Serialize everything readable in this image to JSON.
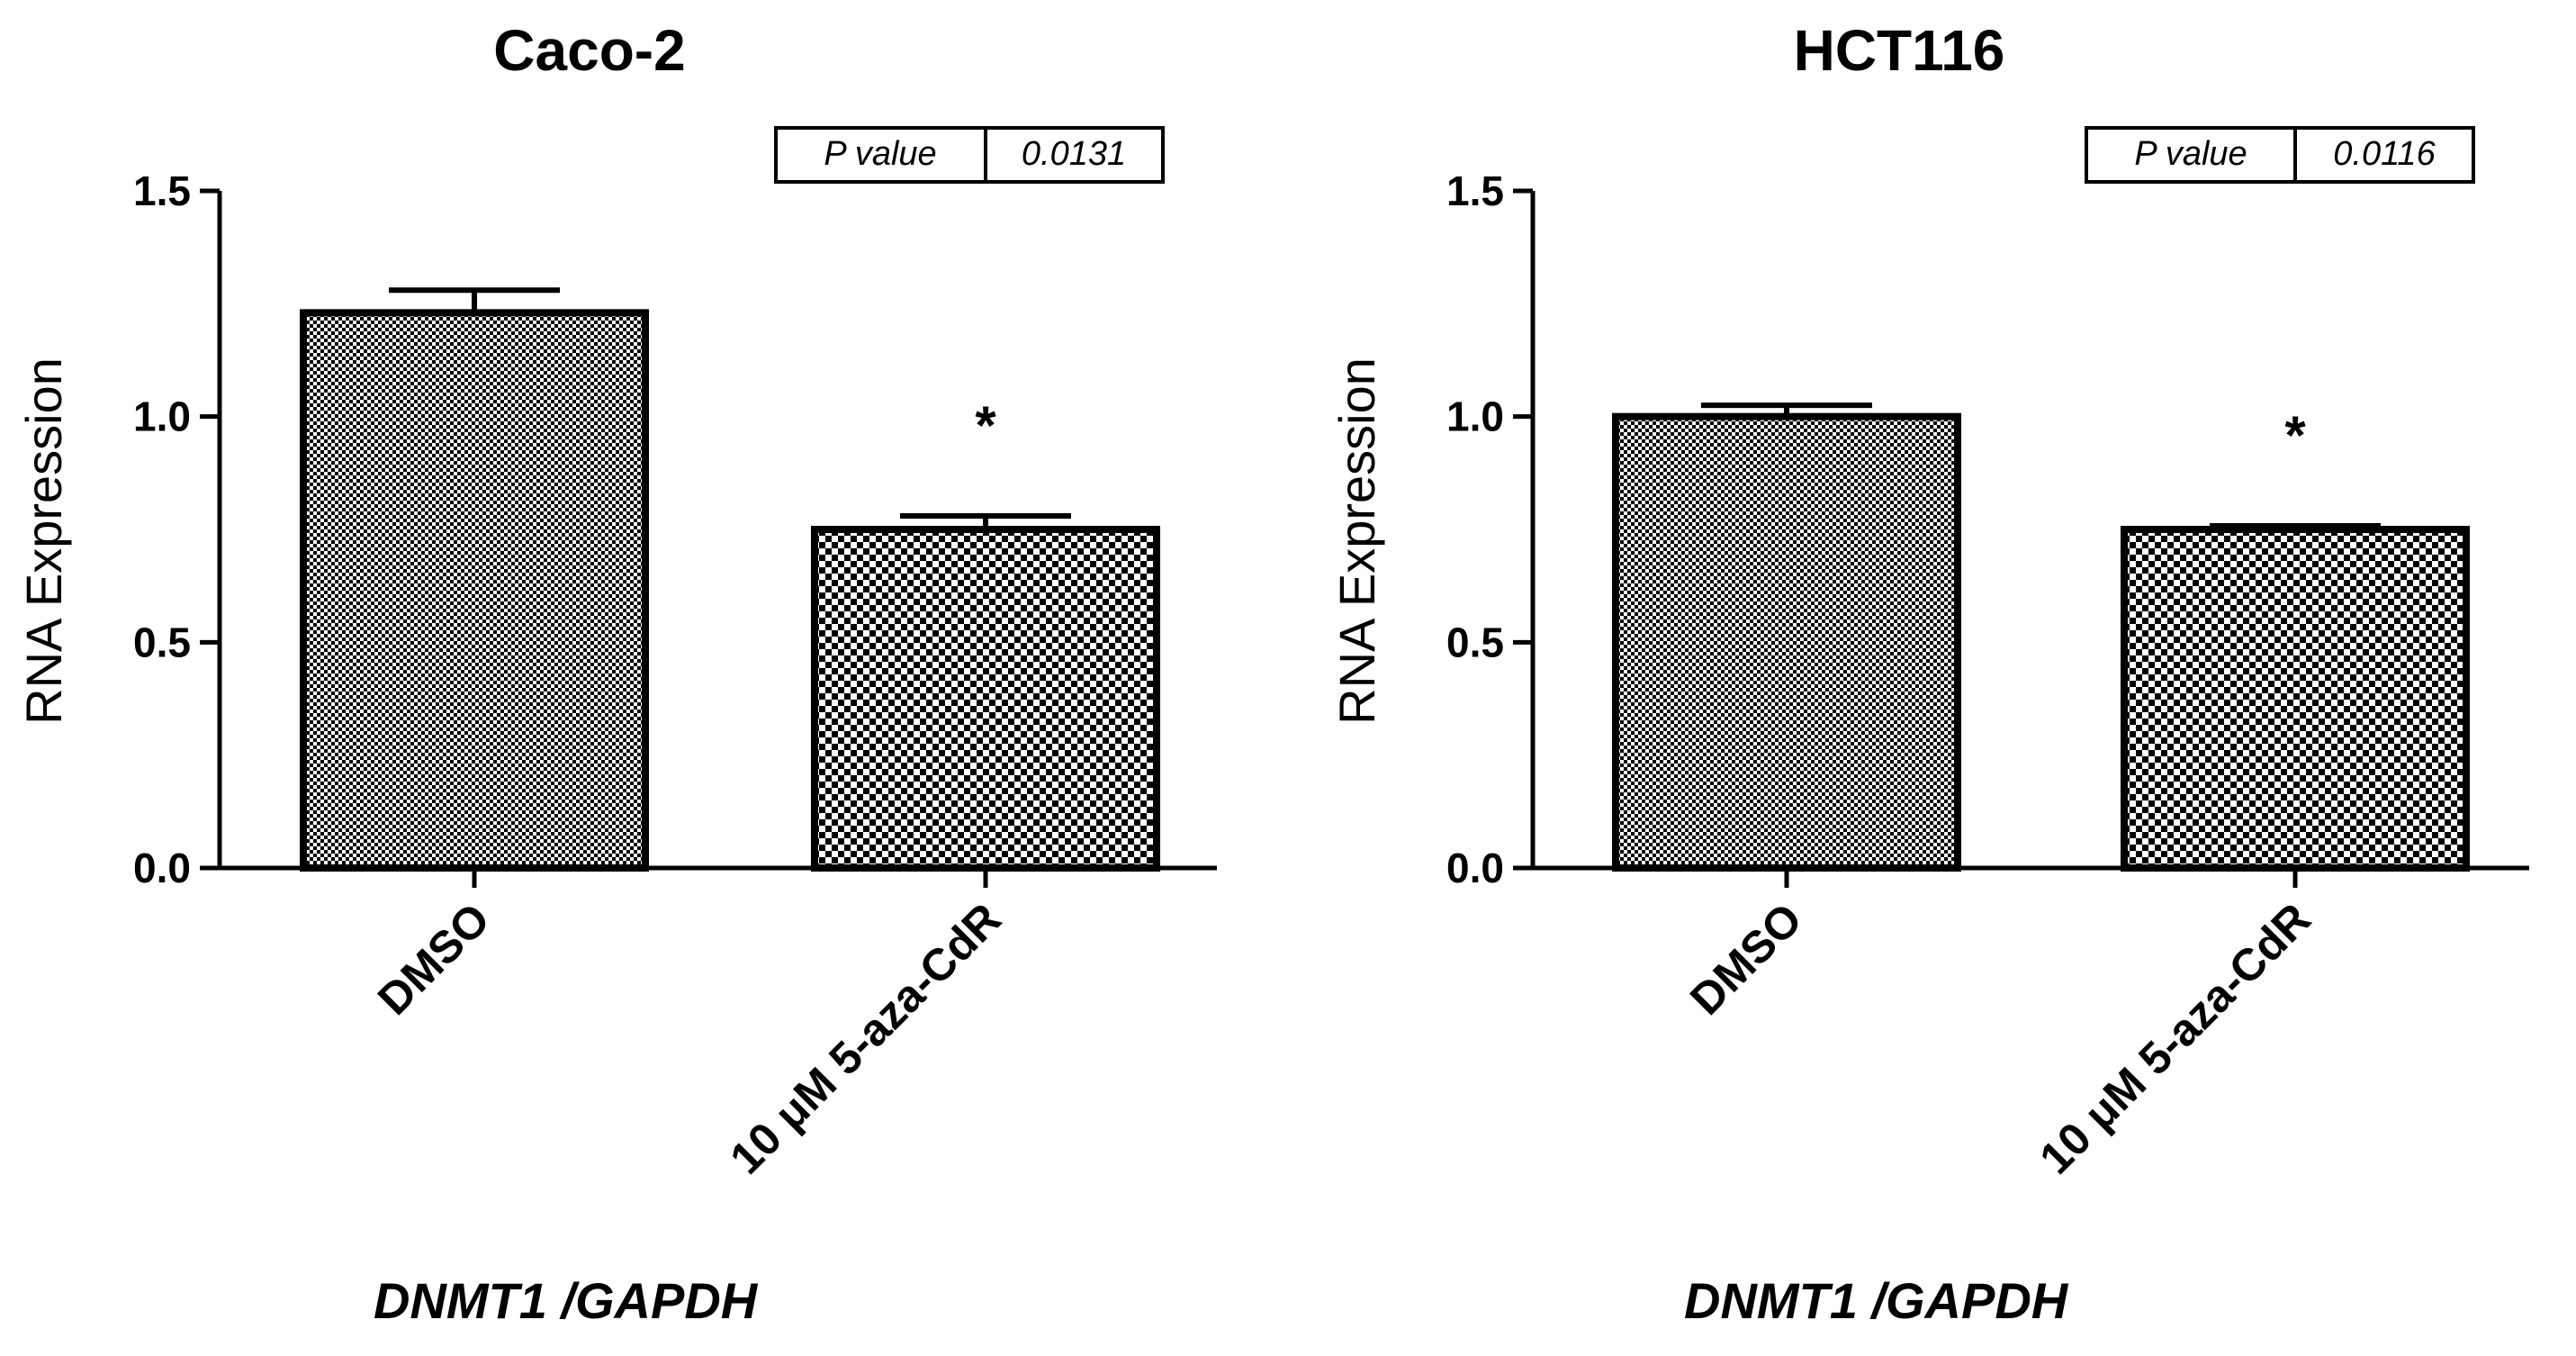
{
  "chart_data": [
    {
      "type": "bar",
      "title": "Caco-2",
      "ylabel": "RNA Expression",
      "xlabel": "",
      "footnote": "DNMT1 /GAPDH",
      "categories": [
        "DMSO",
        "10 μM 5-aza-CdR"
      ],
      "values": [
        1.23,
        0.75
      ],
      "errors": [
        0.05,
        0.03
      ],
      "ylim": [
        0.0,
        1.5
      ],
      "yticks": [
        "0.0",
        "0.5",
        "1.0",
        "1.5"
      ],
      "yticks_values": [
        0.0,
        0.5,
        1.0,
        1.5
      ],
      "significance": [
        "",
        "*"
      ],
      "pvalue": {
        "label": "P value",
        "value": "0.0131"
      },
      "bar_patterns": [
        "fine-checker",
        "coarse-checker"
      ],
      "grid": false,
      "legend": "none"
    },
    {
      "type": "bar",
      "title": "HCT116",
      "ylabel": "RNA Expression",
      "xlabel": "",
      "footnote": "DNMT1 /GAPDH",
      "categories": [
        "DMSO",
        "10 μM 5-aza-CdR"
      ],
      "values": [
        1.0,
        0.75
      ],
      "errors": [
        0.025,
        0.008
      ],
      "ylim": [
        0.0,
        1.5
      ],
      "yticks": [
        "0.0",
        "0.5",
        "1.0",
        "1.5"
      ],
      "yticks_values": [
        0.0,
        0.5,
        1.0,
        1.5
      ],
      "significance": [
        "",
        "*"
      ],
      "pvalue": {
        "label": "P value",
        "value": "0.0116"
      },
      "bar_patterns": [
        "fine-checker",
        "coarse-checker"
      ],
      "grid": false,
      "legend": "none"
    }
  ]
}
